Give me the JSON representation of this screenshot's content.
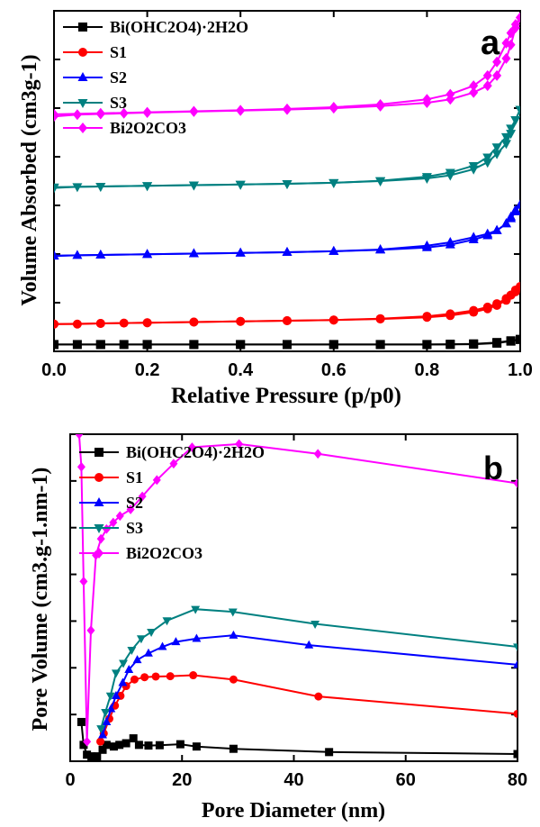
{
  "chart_data": [
    {
      "type": "line",
      "panel_label": "a",
      "xlabel": "Relative Pressure (p/p0)",
      "ylabel": "Volume Absorbed (cm3g-1)",
      "xlim": [
        0,
        1.0
      ],
      "ylim": [
        0,
        100
      ],
      "x_ticks": [
        "0.0",
        "0.2",
        "0.4",
        "0.6",
        "0.8",
        "1.0"
      ],
      "y_ticks_labeled": false,
      "legend_position": "top-left",
      "series": [
        {
          "name": "Bi(OHC2O4)·2H2O",
          "color": "#000000",
          "marker": "square",
          "adsorption": {
            "x": [
              0.0,
              0.05,
              0.1,
              0.15,
              0.2,
              0.3,
              0.4,
              0.5,
              0.6,
              0.7,
              0.8,
              0.85,
              0.9,
              0.95,
              0.98,
              1.0
            ],
            "y": [
              2,
              2,
              2,
              2,
              2,
              2,
              2,
              2,
              2,
              2,
              2,
              2,
              2.1,
              2.4,
              3,
              3.5
            ]
          },
          "desorption": {
            "x": [
              1.0,
              0.98,
              0.95,
              0.9,
              0.85,
              0.8,
              0.7,
              0.6,
              0.5,
              0.4,
              0.3,
              0.2,
              0.1,
              0.0
            ],
            "y": [
              3.5,
              3.1,
              2.6,
              2.2,
              2.1,
              2,
              2,
              2,
              2,
              2,
              2,
              2,
              2,
              2
            ]
          }
        },
        {
          "name": "S1",
          "color": "#ff0000",
          "marker": "circle",
          "adsorption": {
            "x": [
              0.0,
              0.05,
              0.1,
              0.15,
              0.2,
              0.3,
              0.4,
              0.5,
              0.6,
              0.7,
              0.8,
              0.85,
              0.9,
              0.93,
              0.95,
              0.97,
              0.98,
              0.99,
              1.0
            ],
            "y": [
              8,
              8,
              8.2,
              8.3,
              8.4,
              8.6,
              8.8,
              9,
              9.2,
              9.5,
              10,
              10.5,
              11.5,
              12.5,
              13.5,
              15,
              16.5,
              18,
              19
            ]
          },
          "desorption": {
            "x": [
              1.0,
              0.99,
              0.98,
              0.97,
              0.95,
              0.93,
              0.9,
              0.85,
              0.8,
              0.7,
              0.6,
              0.5,
              0.4,
              0.3,
              0.2,
              0.1,
              0.0
            ],
            "y": [
              19,
              17.5,
              16.5,
              15.5,
              14,
              13,
              12,
              11,
              10.3,
              9.6,
              9.2,
              9,
              8.8,
              8.6,
              8.4,
              8.2,
              8
            ]
          }
        },
        {
          "name": "S2",
          "color": "#0000ff",
          "marker": "triangle-up",
          "adsorption": {
            "x": [
              0.0,
              0.05,
              0.1,
              0.2,
              0.3,
              0.4,
              0.5,
              0.6,
              0.7,
              0.8,
              0.85,
              0.9,
              0.93,
              0.95,
              0.97,
              0.98,
              0.99,
              1.0
            ],
            "y": [
              28,
              28.2,
              28.3,
              28.5,
              28.7,
              28.9,
              29.1,
              29.4,
              29.8,
              30.5,
              31.3,
              32.8,
              34,
              35.5,
              37.5,
              39.5,
              41.5,
              43
            ]
          },
          "desorption": {
            "x": [
              1.0,
              0.99,
              0.98,
              0.97,
              0.95,
              0.93,
              0.9,
              0.85,
              0.8,
              0.7,
              0.6,
              0.5,
              0.4,
              0.3,
              0.2,
              0.1,
              0.0
            ],
            "y": [
              43,
              41,
              39,
              37.5,
              35.5,
              34.5,
              33.5,
              32,
              31,
              29.9,
              29.4,
              29.1,
              28.9,
              28.7,
              28.5,
              28.3,
              28.1
            ]
          }
        },
        {
          "name": "S3",
          "color": "#008080",
          "marker": "triangle-down",
          "adsorption": {
            "x": [
              0.0,
              0.05,
              0.1,
              0.2,
              0.3,
              0.4,
              0.5,
              0.6,
              0.7,
              0.8,
              0.85,
              0.9,
              0.93,
              0.95,
              0.97,
              0.98,
              0.99,
              1.0
            ],
            "y": [
              48,
              48.3,
              48.4,
              48.6,
              48.8,
              49,
              49.2,
              49.5,
              50,
              50.8,
              51.7,
              53.5,
              55.5,
              58,
              61,
              64,
              68,
              71
            ]
          },
          "desorption": {
            "x": [
              1.0,
              0.99,
              0.98,
              0.97,
              0.95,
              0.93,
              0.9,
              0.85,
              0.8,
              0.7,
              0.6,
              0.5,
              0.4,
              0.3,
              0.2,
              0.1,
              0.0
            ],
            "y": [
              71,
              68,
              65.5,
              63,
              60,
              57,
              54.5,
              52.5,
              51.3,
              50.1,
              49.5,
              49.2,
              49,
              48.8,
              48.6,
              48.4,
              48.2
            ]
          }
        },
        {
          "name": "Bi2O2CO3",
          "color": "#ff00ff",
          "marker": "diamond",
          "adsorption": {
            "x": [
              0.0,
              0.05,
              0.1,
              0.15,
              0.2,
              0.3,
              0.4,
              0.5,
              0.6,
              0.7,
              0.8,
              0.85,
              0.9,
              0.93,
              0.95,
              0.97,
              0.98,
              0.99,
              1.0
            ],
            "y": [
              69,
              69.5,
              69.7,
              69.9,
              70.1,
              70.4,
              70.7,
              71,
              71.4,
              72,
              73,
              74,
              76,
              78,
              81,
              86,
              90,
              95,
              98
            ]
          },
          "desorption": {
            "x": [
              1.0,
              0.99,
              0.98,
              0.97,
              0.95,
              0.93,
              0.9,
              0.85,
              0.8,
              0.7,
              0.6,
              0.5,
              0.4,
              0.3,
              0.2,
              0.1,
              0.0
            ],
            "y": [
              98,
              96,
              93.5,
              90.5,
              85,
              81,
              78,
              75.5,
              74,
              72.5,
              71.7,
              71.2,
              70.8,
              70.5,
              70.2,
              69.9,
              69.6
            ]
          }
        }
      ]
    },
    {
      "type": "line",
      "panel_label": "b",
      "xlabel": "Pore Diameter (nm)",
      "ylabel": "Pore Volume (cm3.g-1.nm-1)",
      "xlim": [
        0,
        80
      ],
      "ylim": [
        0,
        100
      ],
      "x_ticks": [
        "0",
        "20",
        "40",
        "60",
        "80"
      ],
      "y_ticks_labeled": false,
      "legend_position": "top-left",
      "series": [
        {
          "name": "Bi(OHC2O4)·2H2O",
          "color": "#000000",
          "marker": "square",
          "x": [
            2.0,
            2.4,
            3.0,
            3.8,
            4.8,
            5.8,
            6.5,
            7.8,
            8.8,
            10.0,
            11.3,
            12.3,
            14.0,
            16.0,
            19.7,
            22.6,
            29.2,
            46.3,
            80.0
          ],
          "y": [
            12,
            5,
            2,
            1.5,
            1.5,
            3.5,
            5,
            4.5,
            5,
            5.5,
            7,
            5,
            4.8,
            4.9,
            5.2,
            4.5,
            3.8,
            2.8,
            2.2
          ]
        },
        {
          "name": "S1",
          "color": "#ff0000",
          "marker": "circle",
          "x": [
            5.4,
            6.0,
            7.0,
            8.0,
            9.0,
            10.0,
            11.5,
            13.3,
            15.3,
            17.9,
            22.0,
            29.2,
            44.4,
            80.0
          ],
          "y": [
            6,
            8.5,
            13,
            17,
            20,
            23,
            25,
            25.7,
            25.9,
            26,
            26.3,
            25,
            19.8,
            14.5
          ]
        },
        {
          "name": "S2",
          "color": "#0000ff",
          "marker": "triangle-up",
          "x": [
            5.8,
            6.5,
            7.3,
            8.2,
            9.4,
            10.5,
            12.0,
            14.0,
            16.5,
            18.9,
            22.6,
            29.2,
            42.7,
            80.0
          ],
          "y": [
            8,
            12,
            16,
            20,
            24,
            28,
            31,
            33,
            35,
            36.5,
            37.5,
            38.5,
            35.5,
            29.5
          ]
        },
        {
          "name": "S3",
          "color": "#008080",
          "marker": "triangle-down",
          "x": [
            5.5,
            6.3,
            7.2,
            8.2,
            9.5,
            11.0,
            12.7,
            14.5,
            17.3,
            22.4,
            29.1,
            43.8,
            80.0
          ],
          "y": [
            10,
            15,
            20,
            27,
            30,
            34,
            37.5,
            39.5,
            43,
            46.5,
            45.7,
            42,
            35
          ]
        },
        {
          "name": "Bi2O2CO3",
          "color": "#ff00ff",
          "marker": "diamond",
          "x": [
            1.6,
            2.0,
            2.4,
            3.0,
            3.7,
            4.6,
            5.5,
            6.5,
            7.7,
            8.9,
            10.8,
            12.9,
            15.5,
            18.5,
            21.8,
            30.2,
            44.3,
            80.0
          ],
          "y": [
            100,
            90,
            55,
            6,
            40,
            63,
            68,
            71,
            73,
            75,
            77,
            81,
            86,
            91,
            96,
            97,
            94,
            85
          ]
        }
      ]
    }
  ]
}
